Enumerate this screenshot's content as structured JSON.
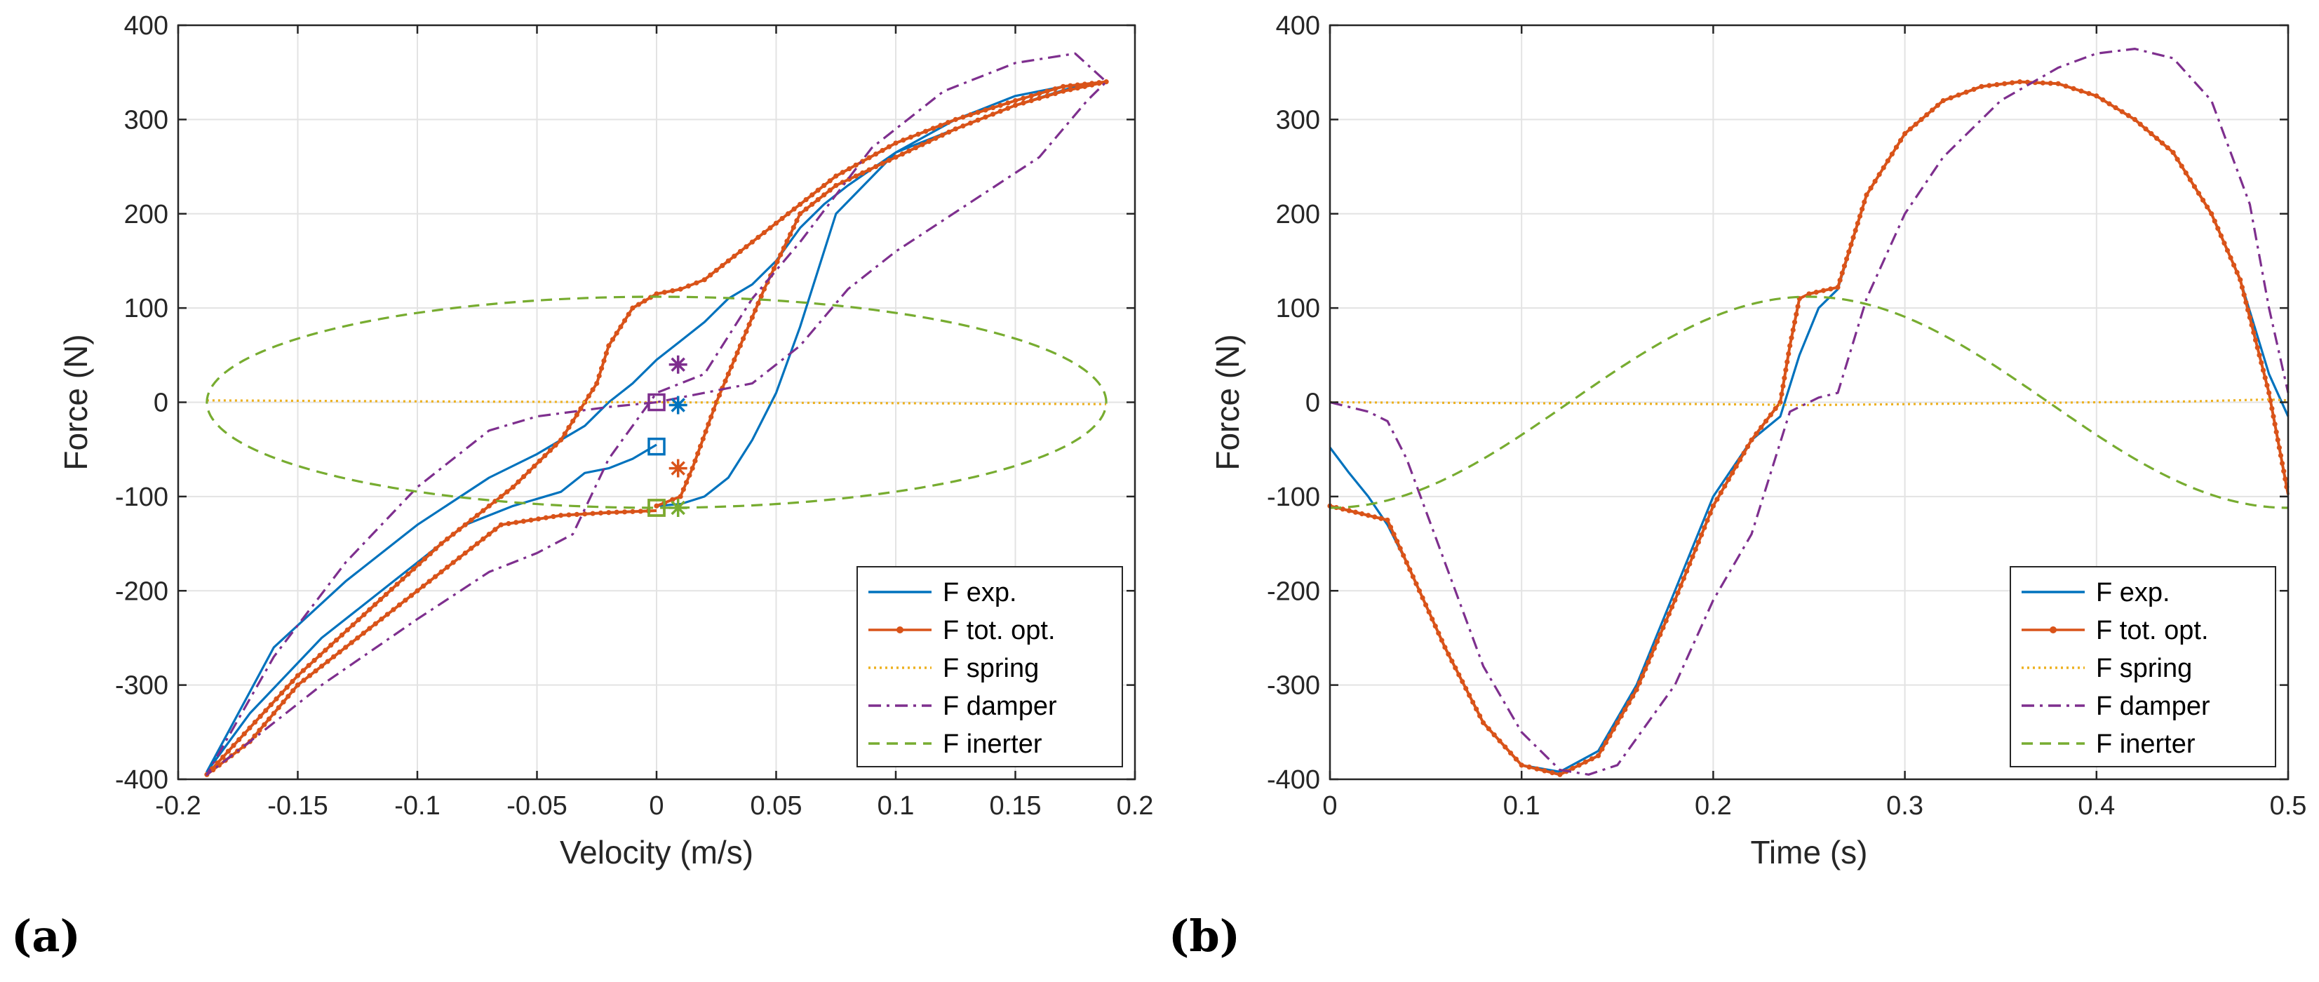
{
  "chart_data": [
    {
      "type": "line",
      "panel_label": "(a)",
      "xlabel": "Velocity (m/s)",
      "ylabel": "Force (N)",
      "xlim": [
        -0.2,
        0.2
      ],
      "ylim": [
        -400,
        400
      ],
      "xticks": [
        -0.2,
        -0.15,
        -0.1,
        -0.05,
        0,
        0.05,
        0.1,
        0.15,
        0.2
      ],
      "xtick_labels": [
        "-0.2",
        "-0.15",
        "-0.1",
        "-0.05",
        "0",
        "0.05",
        "0.1",
        "0.15",
        "0.2"
      ],
      "yticks": [
        -400,
        -300,
        -200,
        -100,
        0,
        100,
        200,
        300,
        400
      ],
      "ytick_labels": [
        "-400",
        "-300",
        "-200",
        "-100",
        "0",
        "100",
        "200",
        "300",
        "400"
      ],
      "grid": true,
      "legend_position": "bottom-right",
      "series": [
        {
          "name": "F exp.",
          "color": "#0072BD",
          "style": "solid",
          "x": [
            0,
            0.01,
            0.02,
            0.03,
            0.04,
            0.05,
            0.06,
            0.075,
            0.1,
            0.125,
            0.15,
            0.17,
            0.188,
            0.175,
            0.15,
            0.12,
            0.1,
            0.08,
            0.07,
            0.06,
            0.05,
            0.04,
            0.03,
            0.02,
            0.01,
            0,
            -0.01,
            -0.02,
            -0.03,
            -0.05,
            -0.07,
            -0.1,
            -0.13,
            -0.16,
            -0.188,
            -0.17,
            -0.14,
            -0.11,
            -0.08,
            -0.06,
            -0.04,
            -0.03,
            -0.02,
            -0.01,
            0
          ],
          "y": [
            -110,
            -108,
            -100,
            -80,
            -40,
            10,
            80,
            200,
            265,
            300,
            325,
            335,
            340,
            335,
            315,
            285,
            265,
            230,
            210,
            185,
            150,
            125,
            110,
            85,
            65,
            45,
            20,
            0,
            -25,
            -55,
            -80,
            -130,
            -190,
            -260,
            -392,
            -330,
            -250,
            -190,
            -130,
            -110,
            -95,
            -75,
            -70,
            -60,
            -45
          ]
        },
        {
          "name": "F tot. opt.",
          "color": "#D95319",
          "style": "solid-dots",
          "x": [
            0,
            0.01,
            0.015,
            0.025,
            0.035,
            0.045,
            0.06,
            0.075,
            0.1,
            0.125,
            0.15,
            0.17,
            0.188,
            0.17,
            0.15,
            0.125,
            0.1,
            0.075,
            0.06,
            0.045,
            0.03,
            0.02,
            0.01,
            0,
            -0.01,
            -0.02,
            -0.025,
            -0.04,
            -0.06,
            -0.09,
            -0.12,
            -0.15,
            -0.188,
            -0.17,
            -0.15,
            -0.12,
            -0.09,
            -0.065,
            -0.04,
            -0.02,
            0
          ],
          "y": [
            -110,
            -100,
            -70,
            0,
            60,
            120,
            200,
            230,
            260,
            290,
            315,
            330,
            340,
            335,
            320,
            300,
            275,
            240,
            210,
            180,
            150,
            130,
            120,
            115,
            100,
            60,
            20,
            -40,
            -90,
            -150,
            -220,
            -290,
            -395,
            -360,
            -300,
            -240,
            -180,
            -130,
            -120,
            -117,
            -115
          ]
        },
        {
          "name": "F spring",
          "color": "#EDB120",
          "style": "dotted",
          "x": [
            -0.188,
            -0.1,
            0,
            0.1,
            0.188
          ],
          "y": [
            2,
            1,
            0,
            -1,
            -2
          ]
        },
        {
          "name": "F damper",
          "color": "#7E2F8E",
          "style": "dashdot",
          "x": [
            0,
            -0.02,
            -0.05,
            -0.07,
            -0.1,
            -0.13,
            -0.16,
            -0.188,
            -0.17,
            -0.14,
            -0.1,
            -0.07,
            -0.05,
            -0.035,
            -0.02,
            0,
            0.02,
            0.04,
            0.06,
            0.09,
            0.12,
            0.15,
            0.175,
            0.188,
            0.18,
            0.16,
            0.13,
            0.1,
            0.08,
            0.06,
            0.04,
            0.02,
            0
          ],
          "y": [
            0,
            -5,
            -15,
            -30,
            -90,
            -170,
            -270,
            -395,
            -360,
            -300,
            -230,
            -180,
            -160,
            -140,
            -60,
            10,
            30,
            110,
            170,
            270,
            330,
            360,
            370,
            340,
            320,
            260,
            210,
            160,
            120,
            60,
            20,
            10,
            0
          ]
        },
        {
          "name": "F inerter",
          "color": "#77AC30",
          "style": "dashed",
          "ellipse": {
            "center_x": 0,
            "center_y": 0,
            "radius_x": 0.188,
            "radius_y": 112
          }
        }
      ],
      "markers": [
        {
          "series": "F exp.",
          "shape": "square",
          "x": 0,
          "y": -47
        },
        {
          "series": "F exp.",
          "shape": "asterisk",
          "x": 0.009,
          "y": -3
        },
        {
          "series": "F tot. opt.",
          "shape": "square",
          "x": 0,
          "y": -112
        },
        {
          "series": "F tot. opt.",
          "shape": "asterisk",
          "x": 0.009,
          "y": -70
        },
        {
          "series": "F damper",
          "shape": "square",
          "x": 0,
          "y": 0
        },
        {
          "series": "F damper",
          "shape": "asterisk",
          "x": 0.009,
          "y": 40
        },
        {
          "series": "F inerter",
          "shape": "square",
          "x": 0,
          "y": -112
        },
        {
          "series": "F inerter",
          "shape": "asterisk",
          "x": 0.009,
          "y": -112
        }
      ]
    },
    {
      "type": "line",
      "panel_label": "(b)",
      "xlabel": "Time (s)",
      "ylabel": "Force (N)",
      "xlim": [
        0,
        0.5
      ],
      "ylim": [
        -400,
        400
      ],
      "xticks": [
        0,
        0.1,
        0.2,
        0.3,
        0.4,
        0.5
      ],
      "xtick_labels": [
        "0",
        "0.1",
        "0.2",
        "0.3",
        "0.4",
        "0.5"
      ],
      "yticks": [
        -400,
        -300,
        -200,
        -100,
        0,
        100,
        200,
        300,
        400
      ],
      "ytick_labels": [
        "-400",
        "-300",
        "-200",
        "-100",
        "0",
        "100",
        "200",
        "300",
        "400"
      ],
      "grid": true,
      "legend_position": "bottom-right",
      "series": [
        {
          "name": "F exp.",
          "color": "#0072BD",
          "style": "solid",
          "x": [
            0,
            0.01,
            0.02,
            0.03,
            0.04,
            0.06,
            0.08,
            0.1,
            0.12,
            0.14,
            0.16,
            0.18,
            0.2,
            0.22,
            0.235,
            0.245,
            0.255,
            0.265,
            0.28,
            0.3,
            0.32,
            0.34,
            0.36,
            0.38,
            0.4,
            0.42,
            0.44,
            0.46,
            0.475,
            0.49,
            0.5
          ],
          "y": [
            -48,
            -75,
            -100,
            -130,
            -170,
            -260,
            -340,
            -385,
            -392,
            -370,
            -300,
            -200,
            -100,
            -40,
            -15,
            50,
            100,
            120,
            220,
            285,
            320,
            335,
            340,
            338,
            325,
            300,
            265,
            200,
            130,
            30,
            -15
          ]
        },
        {
          "name": "F tot. opt.",
          "color": "#D95319",
          "style": "solid-dots",
          "x": [
            0,
            0.01,
            0.02,
            0.03,
            0.04,
            0.06,
            0.08,
            0.1,
            0.12,
            0.14,
            0.16,
            0.18,
            0.2,
            0.22,
            0.235,
            0.24,
            0.245,
            0.25,
            0.265,
            0.28,
            0.3,
            0.32,
            0.34,
            0.36,
            0.38,
            0.4,
            0.42,
            0.44,
            0.46,
            0.475,
            0.49,
            0.5
          ],
          "y": [
            -110,
            -115,
            -120,
            -125,
            -170,
            -260,
            -340,
            -385,
            -395,
            -375,
            -305,
            -210,
            -110,
            -40,
            0,
            60,
            110,
            115,
            122,
            220,
            285,
            320,
            335,
            340,
            338,
            325,
            300,
            265,
            200,
            130,
            10,
            -98
          ]
        },
        {
          "name": "F spring",
          "color": "#EDB120",
          "style": "dotted",
          "x": [
            0,
            0.1,
            0.2,
            0.25,
            0.3,
            0.4,
            0.45,
            0.49,
            0.5
          ],
          "y": [
            0,
            -1,
            -2,
            -3,
            -2,
            0,
            1,
            3,
            2
          ]
        },
        {
          "name": "F damper",
          "color": "#7E2F8E",
          "style": "dashdot",
          "x": [
            0,
            0.01,
            0.02,
            0.03,
            0.04,
            0.06,
            0.08,
            0.1,
            0.12,
            0.135,
            0.15,
            0.18,
            0.2,
            0.22,
            0.24,
            0.255,
            0.265,
            0.28,
            0.3,
            0.32,
            0.35,
            0.38,
            0.4,
            0.42,
            0.44,
            0.46,
            0.48,
            0.49,
            0.5
          ],
          "y": [
            0,
            -5,
            -10,
            -20,
            -60,
            -170,
            -280,
            -350,
            -390,
            -395,
            -385,
            -300,
            -210,
            -140,
            -10,
            5,
            10,
            110,
            200,
            260,
            320,
            355,
            370,
            375,
            365,
            320,
            210,
            100,
            10
          ]
        },
        {
          "name": "F inerter",
          "color": "#77AC30",
          "style": "dashed",
          "sine": {
            "amplitude": 112,
            "period": 0.5,
            "phase_peak_t": 0.25
          }
        }
      ]
    }
  ]
}
